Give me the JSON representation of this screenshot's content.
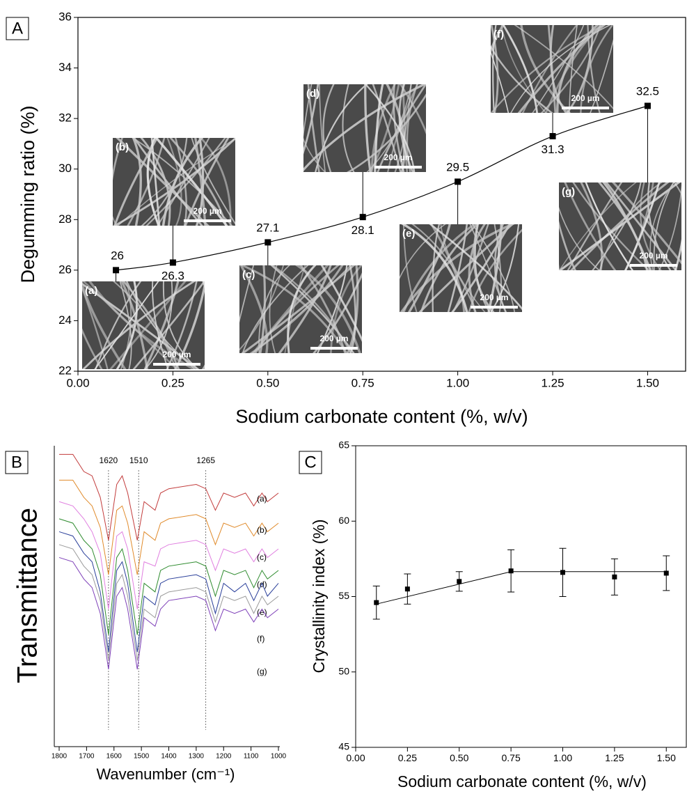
{
  "chart_data": [
    {
      "type": "line",
      "panel": "A",
      "x_label": "Sodium carbonate content (%, w/v)",
      "y_label": "Degumming ratio (%)",
      "x": [
        0.1,
        0.25,
        0.5,
        0.75,
        1.0,
        1.25,
        1.5
      ],
      "values": [
        26,
        26.3,
        27.1,
        28.1,
        29.5,
        31.3,
        32.5
      ],
      "value_labels": [
        "26",
        "26.3",
        "27.1",
        "28.1",
        "29.5",
        "31.3",
        "32.5"
      ],
      "color": "#000000",
      "xlim": [
        0,
        1.6
      ],
      "xticks": [
        {
          "value": 0,
          "label": "0.00"
        },
        {
          "value": 0.25,
          "label": "0.25"
        },
        {
          "value": 0.5,
          "label": "0.50"
        },
        {
          "value": 0.75,
          "label": "0.75"
        },
        {
          "value": 1,
          "label": "1.00"
        },
        {
          "value": 1.25,
          "label": "1.25"
        },
        {
          "value": 1.5,
          "label": "1.50"
        }
      ],
      "ylim": [
        22,
        36
      ],
      "yticks": [
        22,
        24,
        26,
        28,
        30,
        32,
        34,
        36
      ],
      "insets": [
        {
          "label": "(a)",
          "scale_bar": "200 µm"
        },
        {
          "label": "(b)",
          "scale_bar": "200 µm"
        },
        {
          "label": "(c)",
          "scale_bar": "200 µm"
        },
        {
          "label": "(d)",
          "scale_bar": "200 µm"
        },
        {
          "label": "(e)",
          "scale_bar": "200 µm"
        },
        {
          "label": "(f)",
          "scale_bar": "200 µm"
        },
        {
          "label": "(g)",
          "scale_bar": "200 µm"
        }
      ]
    },
    {
      "type": "spectra",
      "panel": "B",
      "x_label": "Wavenumber (cm⁻¹)",
      "y_label": "Transmittance",
      "x": [
        1800,
        1750,
        1710,
        1680,
        1650,
        1620,
        1590,
        1570,
        1550,
        1515,
        1490,
        1450,
        1430,
        1400,
        1300,
        1265,
        1230,
        1200,
        1160,
        1120,
        1090,
        1060,
        1040,
        1000
      ],
      "series": [
        {
          "name": "(a)",
          "color": "#c23b3b",
          "values": [
            98,
            98,
            94,
            93,
            88,
            78,
            91,
            93,
            89,
            78,
            87,
            85,
            89,
            90,
            91,
            90,
            85,
            89,
            88,
            89,
            86,
            89,
            87,
            89
          ]
        },
        {
          "name": "(b)",
          "color": "#e08a2a",
          "values": [
            92,
            92,
            88,
            86,
            81,
            70,
            85,
            86,
            82,
            70,
            80,
            78,
            82,
            83,
            84,
            83,
            77,
            82,
            81,
            82,
            79,
            82,
            80,
            82
          ]
        },
        {
          "name": "(c)",
          "color": "#e07fe0",
          "values": [
            87,
            86,
            83,
            80,
            75,
            62,
            79,
            80,
            76,
            62,
            73,
            72,
            76,
            77,
            78,
            77,
            71,
            76,
            75,
            76,
            73,
            76,
            74,
            76
          ]
        },
        {
          "name": "(d)",
          "color": "#2e8b2e",
          "values": [
            83,
            82,
            78,
            76,
            70,
            56,
            74,
            76,
            71,
            56,
            68,
            66,
            71,
            72,
            73,
            72,
            65,
            71,
            70,
            71,
            67,
            71,
            69,
            71
          ]
        },
        {
          "name": "(e)",
          "color": "#2a3f9a",
          "values": [
            80,
            79,
            75,
            73,
            66,
            52,
            71,
            73,
            68,
            52,
            65,
            63,
            68,
            69,
            70,
            69,
            61,
            68,
            66,
            68,
            64,
            68,
            65,
            68
          ]
        },
        {
          "name": "(f)",
          "color": "#999999",
          "values": [
            77,
            76,
            72,
            70,
            64,
            50,
            68,
            70,
            65,
            50,
            62,
            60,
            65,
            66,
            67,
            66,
            59,
            65,
            64,
            65,
            61,
            65,
            63,
            65
          ]
        },
        {
          "name": "(g)",
          "color": "#7d3fb8",
          "values": [
            74,
            73,
            69,
            67,
            61,
            48,
            65,
            67,
            62,
            48,
            60,
            58,
            62,
            64,
            65,
            64,
            57,
            62,
            61,
            62,
            59,
            62,
            60,
            62
          ]
        }
      ],
      "peaks": [
        1620,
        1510,
        1265
      ],
      "xlim": [
        1800,
        1000
      ],
      "xticks": [
        1800,
        1700,
        1600,
        1500,
        1400,
        1300,
        1200,
        1100,
        1000
      ],
      "ylim": [
        30,
        100
      ]
    },
    {
      "type": "errorbar",
      "panel": "C",
      "x_label": "Sodium carbonate content (%, w/v)",
      "y_label": "Crystallinity index (%)",
      "x": [
        0.1,
        0.25,
        0.5,
        0.75,
        1.0,
        1.25,
        1.5
      ],
      "values": [
        54.6,
        55.5,
        56.0,
        56.7,
        56.6,
        56.3,
        56.55
      ],
      "errors": [
        1.1,
        1.0,
        0.65,
        1.4,
        1.6,
        1.2,
        1.15
      ],
      "fit": {
        "x": [
          0.1,
          0.75,
          1.5
        ],
        "values": [
          54.5,
          56.65,
          56.65
        ]
      },
      "color": "#000000",
      "xlim": [
        0,
        1.6
      ],
      "xticks": [
        {
          "value": 0,
          "label": "0.00"
        },
        {
          "value": 0.25,
          "label": "0.25"
        },
        {
          "value": 0.5,
          "label": "0.50"
        },
        {
          "value": 0.75,
          "label": "0.75"
        },
        {
          "value": 1,
          "label": "1.00"
        },
        {
          "value": 1.25,
          "label": "1.25"
        },
        {
          "value": 1.5,
          "label": "1.50"
        }
      ],
      "ylim": [
        45,
        65
      ],
      "yticks": [
        45,
        50,
        55,
        60,
        65
      ]
    }
  ]
}
